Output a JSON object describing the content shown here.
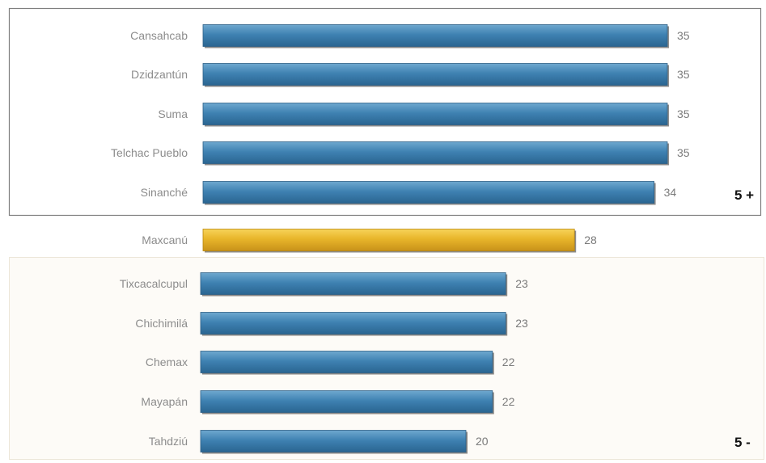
{
  "colors": {
    "bar": "#3c7fae",
    "highlight_bar": "#e8b52a",
    "frame": "#7f7f7f",
    "bottom_panel": "#fdfbf7"
  },
  "labels": {
    "top_group": "5 +",
    "bottom_group": "5 -"
  },
  "chart_data": {
    "type": "bar",
    "orientation": "horizontal",
    "categories": [
      "Cansahcab",
      "Dzidzantún",
      "Suma",
      "Telchac Pueblo",
      "Sinanché",
      "Maxcanú",
      "Tixcacalcupul",
      "Chichimilá",
      "Chemax",
      "Mayapán",
      "Tahdziú"
    ],
    "values": [
      35,
      35,
      35,
      35,
      34,
      28,
      23,
      23,
      22,
      22,
      20
    ],
    "highlight": "Maxcanú",
    "groups": [
      {
        "label": "5 +",
        "categories": [
          "Cansahcab",
          "Dzidzantún",
          "Suma",
          "Telchac Pueblo",
          "Sinanché"
        ]
      },
      {
        "label": "5 -",
        "categories": [
          "Tixcacalcupul",
          "Chichimilá",
          "Chemax",
          "Mayapán",
          "Tahdziú"
        ]
      }
    ],
    "xlim": [
      0,
      35
    ],
    "grid": false,
    "legend": "none"
  }
}
